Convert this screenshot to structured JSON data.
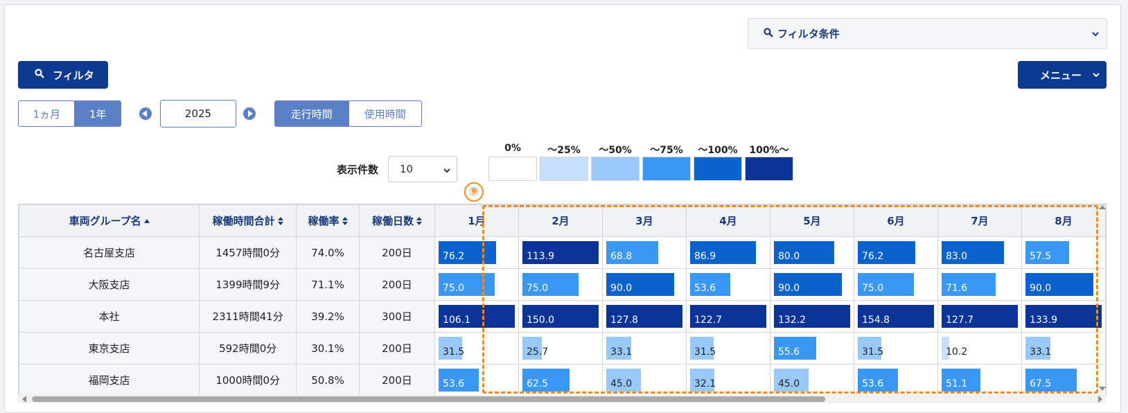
{
  "filter_conditions": {
    "label": "フィルタ条件"
  },
  "filter_button": {
    "label": "フィルタ"
  },
  "menu_button": {
    "label": "メニュー"
  },
  "range_toggle": {
    "options": [
      "1ヵ月",
      "1年"
    ],
    "selected": "1年"
  },
  "year": {
    "value": "2025"
  },
  "mode_toggle": {
    "options": [
      "走行時間",
      "使用時間"
    ],
    "selected": "走行時間"
  },
  "display_count": {
    "label": "表示件数",
    "value": "10"
  },
  "legend": [
    {
      "label": "0%",
      "color": "#ffffff"
    },
    {
      "label": "〜25%",
      "color": "#c6e0fb"
    },
    {
      "label": "〜50%",
      "color": "#99c9fa"
    },
    {
      "label": "〜75%",
      "color": "#3a97f2"
    },
    {
      "label": "〜100%",
      "color": "#0a63cc"
    },
    {
      "label": "100%〜",
      "color": "#0a3497"
    }
  ],
  "callout_marker": "⑨",
  "table": {
    "headers": {
      "group": "車両グループ名",
      "total": "稼働時間合計",
      "rate": "稼働率",
      "days": "稼働日数"
    },
    "months": [
      "1月",
      "2月",
      "3月",
      "4月",
      "5月",
      "6月",
      "7月",
      "8月"
    ],
    "rows": [
      {
        "group": "名古屋支店",
        "total": "1457時間0分",
        "rate": "74.0%",
        "days": "200日",
        "values": [
          "76.2",
          "113.9",
          "68.8",
          "86.9",
          "80.0",
          "76.2",
          "83.0",
          "57.5"
        ],
        "levels": [
          4,
          5,
          3,
          4,
          4,
          4,
          4,
          3
        ],
        "fill": [
          0.75,
          1.0,
          0.68,
          0.86,
          0.79,
          0.75,
          0.82,
          0.57
        ]
      },
      {
        "group": "大阪支店",
        "total": "1399時間9分",
        "rate": "71.1%",
        "days": "200日",
        "values": [
          "75.0",
          "75.0",
          "90.0",
          "53.6",
          "90.0",
          "75.0",
          "71.6",
          "90.0"
        ],
        "levels": [
          3,
          3,
          4,
          3,
          4,
          3,
          3,
          4
        ],
        "fill": [
          0.74,
          0.74,
          0.89,
          0.53,
          0.89,
          0.74,
          0.71,
          0.89
        ]
      },
      {
        "group": "本社",
        "total": "2311時間41分",
        "rate": "39.2%",
        "days": "300日",
        "values": [
          "106.1",
          "150.0",
          "127.8",
          "122.7",
          "132.2",
          "154.8",
          "127.7",
          "133.9"
        ],
        "levels": [
          5,
          5,
          5,
          5,
          5,
          5,
          5,
          5
        ],
        "fill": [
          1.0,
          1.0,
          1.0,
          1.0,
          1.0,
          1.0,
          1.0,
          1.0
        ]
      },
      {
        "group": "東京支店",
        "total": "592時間0分",
        "rate": "30.1%",
        "days": "200日",
        "values": [
          "31.5",
          "25.7",
          "33.1",
          "31.5",
          "55.6",
          "31.5",
          "10.2",
          "33.1"
        ],
        "levels": [
          2,
          2,
          2,
          2,
          3,
          2,
          1,
          2
        ],
        "fill": [
          0.31,
          0.25,
          0.33,
          0.31,
          0.55,
          0.31,
          0.1,
          0.33
        ]
      },
      {
        "group": "福岡支店",
        "total": "1000時間0分",
        "rate": "50.8%",
        "days": "200日",
        "values": [
          "53.6",
          "62.5",
          "45.0",
          "32.1",
          "45.0",
          "53.6",
          "51.1",
          "67.5"
        ],
        "levels": [
          3,
          3,
          2,
          2,
          2,
          3,
          3,
          3
        ],
        "fill": [
          0.53,
          0.62,
          0.45,
          0.32,
          0.45,
          0.53,
          0.51,
          0.67
        ]
      }
    ]
  }
}
